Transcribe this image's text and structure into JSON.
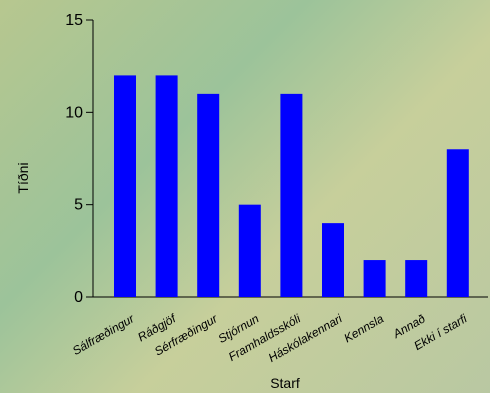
{
  "chart_data": {
    "type": "bar",
    "title": "",
    "xlabel": "Starf",
    "ylabel": "Tíðni",
    "categories": [
      "Sálfræðingur",
      "Ráðgjöf",
      "Sérfræðingur",
      "Stjórnun",
      "Framhaldsskóli",
      "Háskólakennari",
      "Kennsla",
      "Annað",
      "Ekki í starfi"
    ],
    "values": [
      12,
      12,
      11,
      5,
      11,
      4,
      2,
      2,
      8
    ],
    "yticks": [
      0,
      5,
      10,
      15
    ],
    "ylim": [
      0,
      15
    ],
    "bar_color": "#0000ff",
    "grid": false,
    "legend": "none"
  }
}
